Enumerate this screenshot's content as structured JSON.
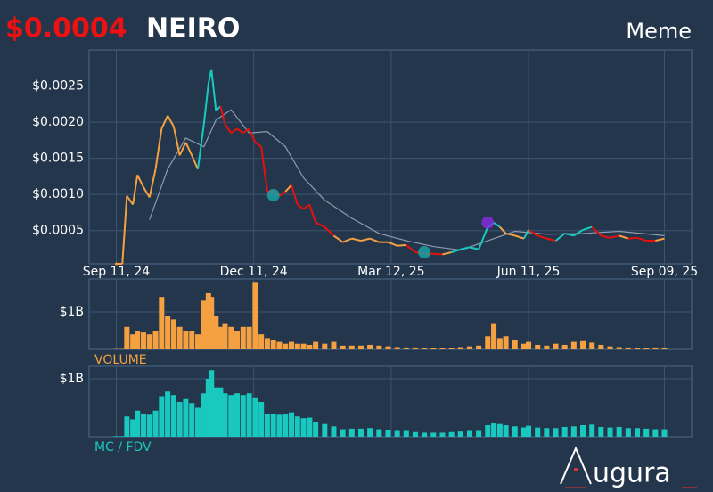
{
  "header": {
    "price": "$0.0004",
    "name": "NEIRO",
    "category": "Meme"
  },
  "logo": {
    "text": "ugura"
  },
  "chart_data": {
    "type": "line",
    "x": [
      "2024-09-11",
      "2024-09-15",
      "2024-09-18",
      "2024-09-22",
      "2024-09-25",
      "2024-09-29",
      "2024-10-03",
      "2024-10-07",
      "2024-10-11",
      "2024-10-15",
      "2024-10-19",
      "2024-10-23",
      "2024-10-27",
      "2024-10-31",
      "2024-11-04",
      "2024-11-08",
      "2024-11-11",
      "2024-11-13",
      "2024-11-16",
      "2024-11-19",
      "2024-11-22",
      "2024-11-26",
      "2024-11-30",
      "2024-12-04",
      "2024-12-08",
      "2024-12-12",
      "2024-12-16",
      "2024-12-20",
      "2024-12-24",
      "2024-12-28",
      "2025-01-01",
      "2025-01-05",
      "2025-01-09",
      "2025-01-13",
      "2025-01-17",
      "2025-01-21",
      "2025-01-27",
      "2025-02-02",
      "2025-02-08",
      "2025-02-14",
      "2025-02-20",
      "2025-02-26",
      "2025-03-04",
      "2025-03-10",
      "2025-03-16",
      "2025-03-22",
      "2025-03-28",
      "2025-04-03",
      "2025-04-09",
      "2025-04-15",
      "2025-04-21",
      "2025-04-27",
      "2025-05-03",
      "2025-05-09",
      "2025-05-15",
      "2025-05-19",
      "2025-05-23",
      "2025-05-27",
      "2025-06-02",
      "2025-06-08",
      "2025-06-11",
      "2025-06-17",
      "2025-06-23",
      "2025-06-29",
      "2025-07-05",
      "2025-07-11",
      "2025-07-17",
      "2025-07-23",
      "2025-07-29",
      "2025-08-04",
      "2025-08-10",
      "2025-08-16",
      "2025-08-22",
      "2025-08-28",
      "2025-09-03",
      "2025-09-09"
    ],
    "xlim": [
      "2024-08-24",
      "2025-09-27"
    ],
    "xticks": [
      {
        "value": "2024-09-11",
        "label": "Sep 11, 24"
      },
      {
        "value": "2024-12-11",
        "label": "Dec 11, 24"
      },
      {
        "value": "2025-03-12",
        "label": "Mar 12, 25"
      },
      {
        "value": "2025-06-11",
        "label": "Jun 11, 25"
      },
      {
        "value": "2025-09-09",
        "label": "Sep 09, 25"
      }
    ],
    "ylim": [
      4e-05,
      0.003
    ],
    "yticks": [
      {
        "value": 0.0005,
        "label": "$0.0005"
      },
      {
        "value": 0.001,
        "label": "$0.0010"
      },
      {
        "value": 0.0015,
        "label": "$0.0015"
      },
      {
        "value": 0.002,
        "label": "$0.0020"
      },
      {
        "value": 0.0025,
        "label": "$0.0025"
      }
    ],
    "grid": true,
    "values": [
      4e-05,
      4e-05,
      0.00098,
      0.00086,
      0.00127,
      0.0011,
      0.00096,
      0.00135,
      0.00191,
      0.00209,
      0.00194,
      0.00154,
      0.00172,
      0.00154,
      0.00135,
      0.00197,
      0.00253,
      0.00273,
      0.00216,
      0.00222,
      0.00197,
      0.00185,
      0.00191,
      0.00185,
      0.00191,
      0.00172,
      0.00166,
      0.00104,
      0.00104,
      0.00098,
      0.00104,
      0.00113,
      0.00086,
      0.0008,
      0.00086,
      0.00061,
      0.00055,
      0.00043,
      0.00034,
      0.00039,
      0.00036,
      0.00039,
      0.00034,
      0.00034,
      0.00029,
      0.0003,
      0.0002,
      0.00018,
      0.00018,
      0.00017,
      0.0002,
      0.00024,
      0.00027,
      0.00024,
      0.00055,
      0.00061,
      0.00055,
      0.00046,
      0.00043,
      0.00039,
      0.00051,
      0.00043,
      0.00039,
      0.00036,
      0.00046,
      0.00043,
      0.00051,
      0.00055,
      0.00043,
      0.0004,
      0.00043,
      0.00039,
      0.0004,
      0.00036,
      0.00036,
      0.00039
    ],
    "colors": [
      "#f5a142",
      "#f5a142",
      "#f5a142",
      "#f5a142",
      "#f5a142",
      "#f5a142",
      "#f5a142",
      "#f5a142",
      "#f5a142",
      "#f5a142",
      "#f5a142",
      "#f5a142",
      "#f5a142",
      "#f5a142",
      "#f5a142",
      "#19c9c0",
      "#19c9c0",
      "#19c9c0",
      "#19c9c0",
      "#19c9c0",
      "#e8100d",
      "#e8100d",
      "#e8100d",
      "#e8100d",
      "#e8100d",
      "#e8100d",
      "#e8100d",
      "#e8100d",
      "#e8100d",
      "#e8100d",
      "#e8100d",
      "#f5a142",
      "#e8100d",
      "#e8100d",
      "#e8100d",
      "#e8100d",
      "#e8100d",
      "#e8100d",
      "#f5a142",
      "#f5a142",
      "#f5a142",
      "#f5a142",
      "#f5a142",
      "#f5a142",
      "#f5a142",
      "#f5a142",
      "#e8100d",
      "#e8100d",
      "#e8100d",
      "#e8100d",
      "#f5a142",
      "#19c9c0",
      "#19c9c0",
      "#19c9c0",
      "#19c9c0",
      "#19c9c0",
      "#19c9c0",
      "#f5a142",
      "#f5a142",
      "#f5a142",
      "#19c9c0",
      "#e8100d",
      "#e8100d",
      "#e8100d",
      "#19c9c0",
      "#19c9c0",
      "#19c9c0",
      "#19c9c0",
      "#e8100d",
      "#e8100d",
      "#e8100d",
      "#f5a142",
      "#e8100d",
      "#e8100d",
      "#e8100d",
      "#f5a142"
    ],
    "ma": {
      "color": "#8d9cb0",
      "x": [
        "2024-10-03",
        "2024-10-15",
        "2024-10-27",
        "2024-11-08",
        "2024-11-16",
        "2024-11-26",
        "2024-12-08",
        "2024-12-20",
        "2025-01-01",
        "2025-01-13",
        "2025-01-27",
        "2025-02-14",
        "2025-03-04",
        "2025-03-22",
        "2025-04-09",
        "2025-04-27",
        "2025-05-15",
        "2025-06-02",
        "2025-06-23",
        "2025-07-17",
        "2025-08-10",
        "2025-09-09"
      ],
      "values": [
        0.00065,
        0.00135,
        0.00178,
        0.00166,
        0.00203,
        0.00217,
        0.00185,
        0.00187,
        0.00166,
        0.00123,
        0.00092,
        0.00067,
        0.00046,
        0.00036,
        0.00028,
        0.00023,
        0.00036,
        0.00049,
        0.00045,
        0.00046,
        0.00049,
        0.00043
      ]
    },
    "markers": [
      {
        "x": "2024-12-24",
        "value": 0.00099,
        "color": "#19a8a8"
      },
      {
        "x": "2025-04-03",
        "value": 0.0002,
        "color": "#19a8a8"
      },
      {
        "x": "2025-05-15",
        "value": 0.00061,
        "color": "#8a2be2"
      }
    ],
    "volume": {
      "label": "VOLUME",
      "color": "#f5a142",
      "ylim": [
        0,
        1.88
      ],
      "yticks": [
        {
          "value": 1,
          "label": "$1B"
        }
      ],
      "values": [
        0.01,
        0.01,
        0.6,
        0.4,
        0.5,
        0.45,
        0.4,
        0.5,
        1.4,
        0.9,
        0.8,
        0.6,
        0.5,
        0.5,
        0.4,
        1.3,
        1.5,
        1.4,
        0.9,
        0.6,
        0.7,
        0.6,
        0.5,
        0.6,
        0.6,
        1.8,
        0.4,
        0.3,
        0.25,
        0.2,
        0.15,
        0.2,
        0.15,
        0.15,
        0.12,
        0.2,
        0.15,
        0.2,
        0.1,
        0.1,
        0.1,
        0.12,
        0.1,
        0.08,
        0.06,
        0.05,
        0.05,
        0.04,
        0.04,
        0.03,
        0.04,
        0.06,
        0.08,
        0.1,
        0.35,
        0.7,
        0.3,
        0.35,
        0.25,
        0.15,
        0.2,
        0.12,
        0.1,
        0.15,
        0.12,
        0.2,
        0.22,
        0.18,
        0.12,
        0.08,
        0.06,
        0.05,
        0.04,
        0.04,
        0.05,
        0.04
      ]
    },
    "mc": {
      "label": "MC / FDV",
      "color": "#19c9c0",
      "ylim": [
        0,
        1.215
      ],
      "yticks": [
        {
          "value": 1,
          "label": "$1B"
        }
      ],
      "values": [
        0.01,
        0.01,
        0.35,
        0.3,
        0.45,
        0.4,
        0.38,
        0.45,
        0.7,
        0.78,
        0.72,
        0.6,
        0.65,
        0.58,
        0.5,
        0.75,
        1.0,
        1.15,
        0.85,
        0.85,
        0.75,
        0.72,
        0.75,
        0.72,
        0.75,
        0.68,
        0.6,
        0.4,
        0.4,
        0.38,
        0.4,
        0.42,
        0.35,
        0.32,
        0.33,
        0.25,
        0.22,
        0.18,
        0.13,
        0.14,
        0.14,
        0.15,
        0.13,
        0.11,
        0.1,
        0.1,
        0.08,
        0.07,
        0.07,
        0.07,
        0.08,
        0.09,
        0.1,
        0.1,
        0.2,
        0.23,
        0.22,
        0.2,
        0.18,
        0.16,
        0.19,
        0.16,
        0.15,
        0.15,
        0.17,
        0.18,
        0.2,
        0.21,
        0.17,
        0.16,
        0.17,
        0.15,
        0.15,
        0.14,
        0.13,
        0.13
      ]
    }
  }
}
